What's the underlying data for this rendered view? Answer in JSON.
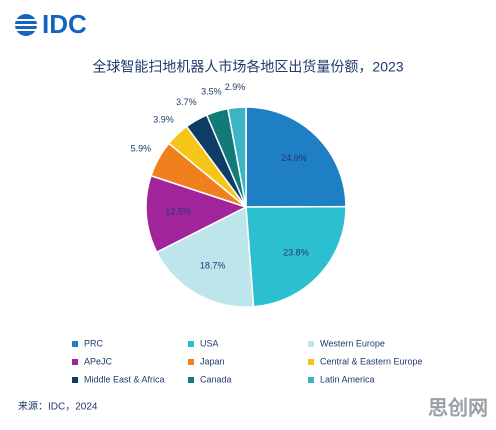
{
  "logo": "IDC",
  "watermark": "思创网",
  "chart_data": {
    "type": "pie",
    "title": "全球智能扫地机器人市场各地区出货量份额，2023",
    "source": "来源：IDC，2024",
    "categories": [
      "PRC",
      "USA",
      "Western Europe",
      "APeJC",
      "Japan",
      "Central & Eastern Europe",
      "Middle East & Africa",
      "Canada",
      "Latin America"
    ],
    "values": [
      24.9,
      23.8,
      18.7,
      12.5,
      5.9,
      3.9,
      3.7,
      3.5,
      2.9
    ],
    "value_labels": [
      "24.9%",
      "23.8%",
      "18.7%",
      "12.5%",
      "5.9%",
      "3.9%",
      "3.7%",
      "3.5%",
      "2.9%"
    ],
    "colors": [
      "#1f7fc4",
      "#2bbfcf",
      "#bfe5ec",
      "#a0259a",
      "#f07f1d",
      "#f5c518",
      "#0d3d66",
      "#137a7a",
      "#3bb5c4"
    ],
    "legend": "bottom"
  }
}
